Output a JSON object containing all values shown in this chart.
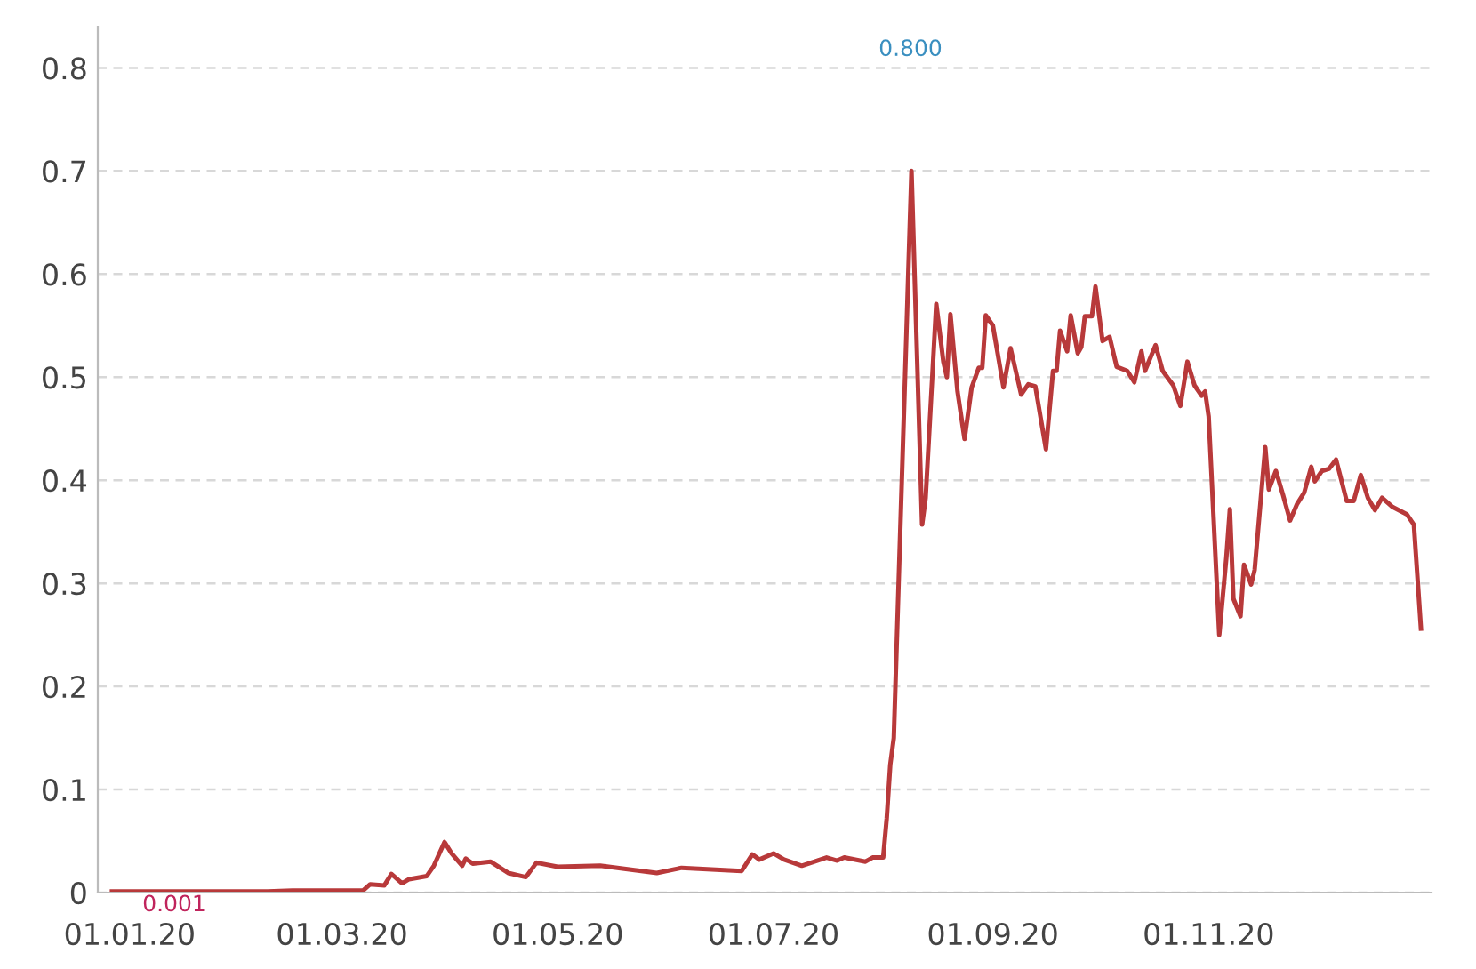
{
  "chart_data": {
    "type": "line",
    "x": [
      "2019-12-27",
      "2020-02-09",
      "2020-02-16",
      "2020-03-07",
      "2020-03-09",
      "2020-03-13",
      "2020-03-15",
      "2020-03-18",
      "2020-03-20",
      "2020-03-25",
      "2020-03-27",
      "2020-03-30",
      "2020-04-01",
      "2020-04-04",
      "2020-04-05",
      "2020-04-07",
      "2020-04-12",
      "2020-04-17",
      "2020-04-22",
      "2020-04-25",
      "2020-05-01",
      "2020-05-13",
      "2020-05-29",
      "2020-06-05",
      "2020-06-22",
      "2020-06-25",
      "2020-06-27",
      "2020-07-01",
      "2020-07-04",
      "2020-07-09",
      "2020-07-16",
      "2020-07-19",
      "2020-07-21",
      "2020-07-27",
      "2020-07-29",
      "2020-08-01",
      "2020-08-02",
      "2020-08-03",
      "2020-08-04",
      "2020-08-09",
      "2020-08-12",
      "2020-08-13",
      "2020-08-16",
      "2020-08-18",
      "2020-08-19",
      "2020-08-20",
      "2020-08-22",
      "2020-08-24",
      "2020-08-26",
      "2020-08-28",
      "2020-08-29",
      "2020-08-30",
      "2020-09-01",
      "2020-09-04",
      "2020-09-06",
      "2020-09-09",
      "2020-09-11",
      "2020-09-13",
      "2020-09-16",
      "2020-09-18",
      "2020-09-19",
      "2020-09-20",
      "2020-09-22",
      "2020-09-23",
      "2020-09-25",
      "2020-09-26",
      "2020-09-27",
      "2020-09-29",
      "2020-09-30",
      "2020-10-02",
      "2020-10-04",
      "2020-10-06",
      "2020-10-09",
      "2020-10-11",
      "2020-10-13",
      "2020-10-14",
      "2020-10-17",
      "2020-10-19",
      "2020-10-22",
      "2020-10-24",
      "2020-10-26",
      "2020-10-28",
      "2020-10-30",
      "2020-10-31",
      "2020-11-01",
      "2020-11-04",
      "2020-11-06",
      "2020-11-07",
      "2020-11-08",
      "2020-11-10",
      "2020-11-11",
      "2020-11-13",
      "2020-11-14",
      "2020-11-17",
      "2020-11-18",
      "2020-11-20",
      "2020-11-22",
      "2020-11-24",
      "2020-11-26",
      "2020-11-28",
      "2020-11-30",
      "2020-12-01",
      "2020-12-03",
      "2020-12-05",
      "2020-12-07",
      "2020-12-10",
      "2020-12-12",
      "2020-12-14",
      "2020-12-16",
      "2020-12-18",
      "2020-12-20",
      "2020-12-23",
      "2020-12-27",
      "2020-12-29",
      "2020-12-31"
    ],
    "series": [
      {
        "color": "#b8393a",
        "values": [
          0.001,
          0.001,
          0.002,
          0.002,
          0.008,
          0.007,
          0.018,
          0.009,
          0.013,
          0.016,
          0.026,
          0.049,
          0.038,
          0.026,
          0.033,
          0.028,
          0.03,
          0.019,
          0.015,
          0.029,
          0.025,
          0.026,
          0.019,
          0.024,
          0.021,
          0.037,
          0.032,
          0.038,
          0.032,
          0.026,
          0.034,
          0.031,
          0.034,
          0.03,
          0.034,
          0.034,
          0.072,
          0.124,
          0.15,
          0.7,
          0.357,
          0.383,
          0.571,
          0.515,
          0.5,
          0.561,
          0.486,
          0.44,
          0.49,
          0.509,
          0.509,
          0.56,
          0.55,
          0.49,
          0.528,
          0.483,
          0.493,
          0.491,
          0.43,
          0.506,
          0.506,
          0.545,
          0.525,
          0.56,
          0.523,
          0.529,
          0.559,
          0.559,
          0.588,
          0.535,
          0.539,
          0.51,
          0.506,
          0.495,
          0.525,
          0.506,
          0.531,
          0.506,
          0.492,
          0.472,
          0.515,
          0.492,
          0.482,
          0.486,
          0.462,
          0.25,
          0.325,
          0.372,
          0.285,
          0.268,
          0.318,
          0.299,
          0.313,
          0.432,
          0.391,
          0.409,
          0.386,
          0.361,
          0.377,
          0.388,
          0.413,
          0.399,
          0.409,
          0.411,
          0.42,
          0.38,
          0.38,
          0.405,
          0.383,
          0.371,
          0.383,
          0.374,
          0.367,
          0.357,
          0.256
        ]
      }
    ],
    "xlim": [
      "2019-12-23",
      "2021-01-03"
    ],
    "xticks": [
      {
        "value": "2020-01-01",
        "label": "01.01.20"
      },
      {
        "value": "2020-03-01",
        "label": "01.03.20"
      },
      {
        "value": "2020-05-01",
        "label": "01.05.20"
      },
      {
        "value": "2020-07-01",
        "label": "01.07.20"
      },
      {
        "value": "2020-09-01",
        "label": "01.09.20"
      },
      {
        "value": "2020-11-01",
        "label": "01.11.20"
      }
    ],
    "ylim": [
      0,
      0.84
    ],
    "yticks": [
      0,
      0.1,
      0.2,
      0.3,
      0.4,
      0.5,
      0.6,
      0.7,
      0.8
    ],
    "grid": "y",
    "marker": "none",
    "line_style": "solid",
    "annotations": [
      "0.001",
      "0.800"
    ]
  }
}
